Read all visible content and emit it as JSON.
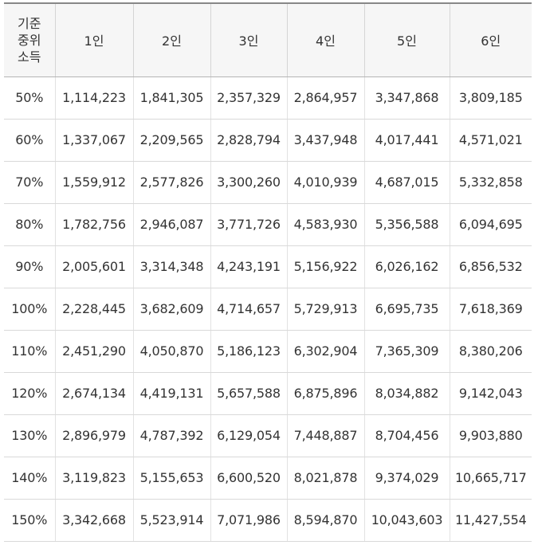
{
  "table": {
    "corner_header": [
      "기준",
      "중위",
      "소득"
    ],
    "columns": [
      "1인",
      "2인",
      "3인",
      "4인",
      "5인",
      "6인"
    ],
    "rows": [
      {
        "label": "50%",
        "values": [
          "1,114,223",
          "1,841,305",
          "2,357,329",
          "2,864,957",
          "3,347,868",
          "3,809,185"
        ]
      },
      {
        "label": "60%",
        "values": [
          "1,337,067",
          "2,209,565",
          "2,828,794",
          "3,437,948",
          "4,017,441",
          "4,571,021"
        ]
      },
      {
        "label": "70%",
        "values": [
          "1,559,912",
          "2,577,826",
          "3,300,260",
          "4,010,939",
          "4,687,015",
          "5,332,858"
        ]
      },
      {
        "label": "80%",
        "values": [
          "1,782,756",
          "2,946,087",
          "3,771,726",
          "4,583,930",
          "5,356,588",
          "6,094,695"
        ]
      },
      {
        "label": "90%",
        "values": [
          "2,005,601",
          "3,314,348",
          "4,243,191",
          "5,156,922",
          "6,026,162",
          "6,856,532"
        ]
      },
      {
        "label": "100%",
        "values": [
          "2,228,445",
          "3,682,609",
          "4,714,657",
          "5,729,913",
          "6,695,735",
          "7,618,369"
        ]
      },
      {
        "label": "110%",
        "values": [
          "2,451,290",
          "4,050,870",
          "5,186,123",
          "6,302,904",
          "7,365,309",
          "8,380,206"
        ]
      },
      {
        "label": "120%",
        "values": [
          "2,674,134",
          "4,419,131",
          "5,657,588",
          "6,875,896",
          "8,034,882",
          "9,142,043"
        ]
      },
      {
        "label": "130%",
        "values": [
          "2,896,979",
          "4,787,392",
          "6,129,054",
          "7,448,887",
          "8,704,456",
          "9,903,880"
        ]
      },
      {
        "label": "140%",
        "values": [
          "3,119,823",
          "5,155,653",
          "6,600,520",
          "8,021,878",
          "9,374,029",
          "10,665,717"
        ]
      },
      {
        "label": "150%",
        "values": [
          "3,342,668",
          "5,523,914",
          "7,071,986",
          "8,594,870",
          "10,043,603",
          "11,427,554"
        ]
      }
    ]
  }
}
